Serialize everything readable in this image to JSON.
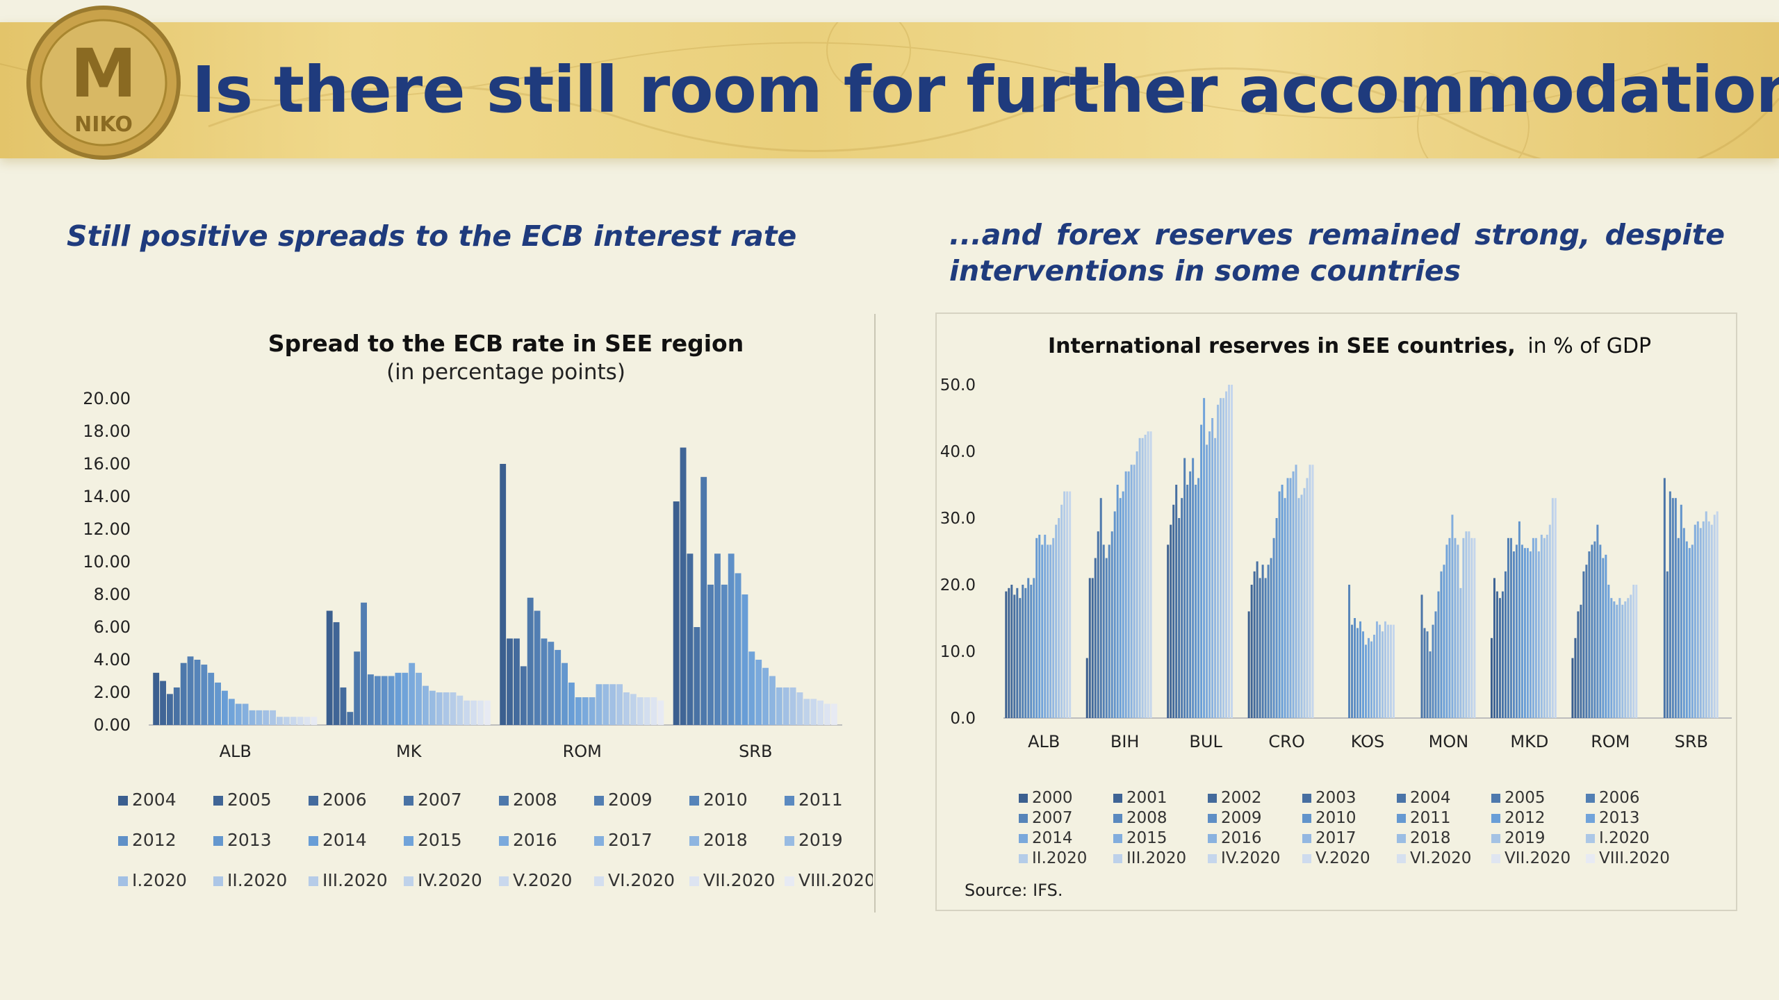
{
  "header": {
    "title": "Is there still room for further accommodation?",
    "coin_letters": "M",
    "coin_text": "NIKO"
  },
  "left_panel": {
    "subtitle": "Still positive spreads to the ECB interest rate"
  },
  "right_panel": {
    "subtitle_line1": "...and forex reserves remained strong, despite",
    "subtitle_line2": "interventions in some countries"
  },
  "colors": {
    "title_blue": "#1f3b7d",
    "background": "#f3f1e1",
    "banner_gold": "#e9cf7d"
  },
  "chart_data": [
    {
      "type": "bar",
      "title": "Spread to the ECB rate in SEE region",
      "subtitle": "(in percentage points)",
      "categories": [
        "ALB",
        "MK",
        "ROM",
        "SRB"
      ],
      "ylim": [
        0,
        20
      ],
      "yticks": [
        "20.00",
        "18.00",
        "16.00",
        "14.00",
        "12.00",
        "10.00",
        "8.00",
        "6.00",
        "4.00",
        "2.00",
        "0.00"
      ],
      "grid": false,
      "legend_position": "bottom",
      "series": [
        {
          "name": "2004",
          "values": [
            3.2,
            7.0,
            16.0,
            13.7
          ]
        },
        {
          "name": "2005",
          "values": [
            2.7,
            6.3,
            5.3,
            17.0
          ]
        },
        {
          "name": "2006",
          "values": [
            1.9,
            2.3,
            5.3,
            10.5
          ]
        },
        {
          "name": "2007",
          "values": [
            2.3,
            0.8,
            3.6,
            6.0
          ]
        },
        {
          "name": "2008",
          "values": [
            3.8,
            4.5,
            7.8,
            15.2
          ]
        },
        {
          "name": "2009",
          "values": [
            4.2,
            7.5,
            7.0,
            8.6
          ]
        },
        {
          "name": "2010",
          "values": [
            4.0,
            3.1,
            5.3,
            10.5
          ]
        },
        {
          "name": "2011",
          "values": [
            3.7,
            3.0,
            5.1,
            8.6
          ]
        },
        {
          "name": "2012",
          "values": [
            3.2,
            3.0,
            4.6,
            10.5
          ]
        },
        {
          "name": "2013",
          "values": [
            2.6,
            3.0,
            3.8,
            9.3
          ]
        },
        {
          "name": "2014",
          "values": [
            2.1,
            3.2,
            2.6,
            8.0
          ]
        },
        {
          "name": "2015",
          "values": [
            1.6,
            3.2,
            1.7,
            4.5
          ]
        },
        {
          "name": "2016",
          "values": [
            1.3,
            3.8,
            1.7,
            4.0
          ]
        },
        {
          "name": "2017",
          "values": [
            1.3,
            3.2,
            1.7,
            3.5
          ]
        },
        {
          "name": "2018",
          "values": [
            0.9,
            2.4,
            2.5,
            3.0
          ]
        },
        {
          "name": "2019",
          "values": [
            0.9,
            2.1,
            2.5,
            2.3
          ]
        },
        {
          "name": "I.2020",
          "values": [
            0.9,
            2.0,
            2.5,
            2.3
          ]
        },
        {
          "name": "II.2020",
          "values": [
            0.9,
            2.0,
            2.5,
            2.3
          ]
        },
        {
          "name": "III.2020",
          "values": [
            0.5,
            2.0,
            2.0,
            2.0
          ]
        },
        {
          "name": "IV.2020",
          "values": [
            0.5,
            1.8,
            1.9,
            1.6
          ]
        },
        {
          "name": "V.2020",
          "values": [
            0.5,
            1.5,
            1.7,
            1.6
          ]
        },
        {
          "name": "VI.2020",
          "values": [
            0.5,
            1.5,
            1.7,
            1.5
          ]
        },
        {
          "name": "VII.2020",
          "values": [
            0.5,
            1.5,
            1.7,
            1.3
          ]
        },
        {
          "name": "VIII.2020",
          "values": [
            0.5,
            1.5,
            1.5,
            1.3
          ]
        }
      ]
    },
    {
      "type": "bar",
      "title": "International reserves in SEE countries,",
      "title_suffix": "in % of GDP",
      "categories": [
        "ALB",
        "BIH",
        "BUL",
        "CRO",
        "KOS",
        "MON",
        "MKD",
        "ROM",
        "SRB"
      ],
      "ylim": [
        0,
        50
      ],
      "yticks": [
        "50.0",
        "40.0",
        "30.0",
        "20.0",
        "10.0",
        "0.0"
      ],
      "grid": false,
      "legend_position": "bottom",
      "source": "Source: IFS.",
      "series": [
        {
          "name": "2000",
          "values": [
            19.0,
            9.0,
            26.0,
            16.0,
            0,
            0,
            12.0,
            9.0,
            0
          ]
        },
        {
          "name": "2001",
          "values": [
            19.5,
            21.0,
            29.0,
            20.0,
            0,
            0,
            21.0,
            12.0,
            0
          ]
        },
        {
          "name": "2002",
          "values": [
            20.0,
            21.0,
            32.0,
            22.0,
            0,
            0,
            19.0,
            16.0,
            0
          ]
        },
        {
          "name": "2003",
          "values": [
            18.5,
            24.0,
            35.0,
            23.5,
            0,
            0,
            18.0,
            17.0,
            0
          ]
        },
        {
          "name": "2004",
          "values": [
            19.5,
            28.0,
            30.0,
            21.0,
            0,
            18.5,
            19.0,
            22.0,
            36.0
          ]
        },
        {
          "name": "2005",
          "values": [
            18.0,
            33.0,
            33.0,
            23.0,
            0,
            13.5,
            22.0,
            23.0,
            22.0
          ]
        },
        {
          "name": "2006",
          "values": [
            20.0,
            26.0,
            39.0,
            21.0,
            0,
            13.0,
            27.0,
            25.0,
            34.0
          ]
        },
        {
          "name": "2007",
          "values": [
            19.5,
            24.0,
            35.0,
            23.0,
            20.0,
            10.0,
            27.0,
            26.0,
            33.0
          ]
        },
        {
          "name": "2008",
          "values": [
            21.0,
            26.0,
            37.0,
            24.0,
            14.0,
            14.0,
            25.0,
            26.5,
            33.0
          ]
        },
        {
          "name": "2009",
          "values": [
            20.0,
            28.0,
            39.0,
            27.0,
            15.0,
            16.0,
            26.0,
            29.0,
            27.0
          ]
        },
        {
          "name": "2010",
          "values": [
            21.0,
            31.0,
            35.0,
            30.0,
            13.5,
            19.0,
            29.5,
            26.0,
            32.0
          ]
        },
        {
          "name": "2011",
          "values": [
            27.0,
            35.0,
            36.0,
            34.0,
            14.5,
            22.0,
            26.0,
            24.0,
            28.5
          ]
        },
        {
          "name": "2012",
          "values": [
            27.5,
            33.0,
            44.0,
            35.0,
            13.0,
            23.0,
            25.5,
            24.5,
            26.5
          ]
        },
        {
          "name": "2013",
          "values": [
            26.0,
            34.0,
            48.0,
            33.0,
            11.0,
            26.0,
            25.5,
            20.0,
            25.5
          ]
        },
        {
          "name": "2014",
          "values": [
            27.5,
            37.0,
            41.0,
            36.0,
            12.0,
            27.0,
            25.0,
            18.0,
            26.0
          ]
        },
        {
          "name": "2015",
          "values": [
            26.0,
            37.0,
            43.0,
            36.0,
            11.5,
            30.5,
            27.0,
            17.5,
            29.0
          ]
        },
        {
          "name": "2016",
          "values": [
            26.0,
            38.0,
            45.0,
            37.0,
            12.5,
            27.0,
            27.0,
            17.0,
            29.5
          ]
        },
        {
          "name": "2017",
          "values": [
            27.0,
            38.0,
            42.0,
            38.0,
            14.5,
            26.0,
            25.0,
            18.0,
            28.5
          ]
        },
        {
          "name": "2018",
          "values": [
            29.0,
            40.0,
            47.0,
            33.0,
            14.0,
            19.5,
            27.5,
            17.0,
            29.5
          ]
        },
        {
          "name": "2019",
          "values": [
            30.0,
            42.0,
            48.0,
            33.5,
            13.0,
            27.0,
            27.0,
            17.5,
            31.0
          ]
        },
        {
          "name": "I.2020",
          "values": [
            32.0,
            42.0,
            48.0,
            34.5,
            14.5,
            28.0,
            27.5,
            18.0,
            29.5
          ]
        },
        {
          "name": "II.2020",
          "values": [
            34.0,
            42.5,
            49.0,
            36.0,
            14.0,
            28.0,
            29.0,
            18.5,
            29.0
          ]
        },
        {
          "name": "III.2020",
          "values": [
            34.0,
            43.0,
            50.0,
            38.0,
            14.0,
            27.0,
            33.0,
            20.0,
            30.5
          ]
        },
        {
          "name": "IV.2020",
          "values": [
            34.0,
            43.0,
            50.0,
            38.0,
            14.0,
            27.0,
            33.0,
            20.0,
            31.0
          ]
        },
        {
          "name": "V.2020",
          "values": [
            0,
            0,
            0,
            0,
            0,
            0,
            0,
            0,
            0
          ]
        },
        {
          "name": "VI.2020",
          "values": [
            0,
            0,
            0,
            0,
            0,
            0,
            0,
            0,
            0
          ]
        },
        {
          "name": "VII.2020",
          "values": [
            0,
            0,
            0,
            0,
            0,
            0,
            0,
            0,
            0
          ]
        },
        {
          "name": "VIII.2020",
          "values": [
            0,
            0,
            0,
            0,
            0,
            0,
            0,
            0,
            0
          ]
        }
      ]
    }
  ]
}
